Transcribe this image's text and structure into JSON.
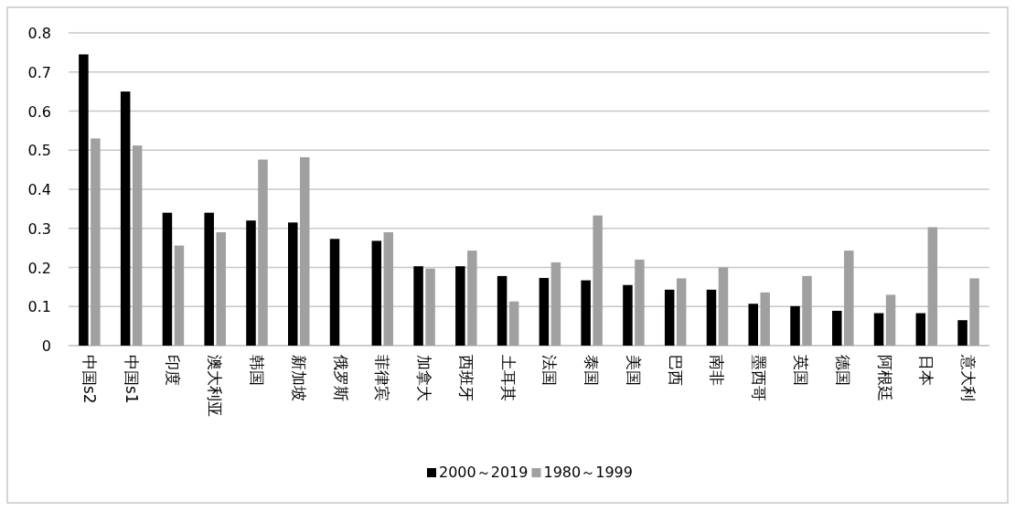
{
  "chart_data": {
    "type": "bar",
    "categories": [
      "中国s2",
      "中国s1",
      "印度",
      "澳大利亚",
      "韩国",
      "新加坡",
      "俄罗斯",
      "菲律宾",
      "加拿大",
      "西班牙",
      "土耳其",
      "法国",
      "泰国",
      "美国",
      "巴西",
      "南非",
      "墨西哥",
      "英国",
      "德国",
      "阿根廷",
      "日本",
      "意大利"
    ],
    "series": [
      {
        "name": "2000～2019",
        "color": "#000000",
        "values": [
          0.745,
          0.65,
          0.34,
          0.34,
          0.32,
          0.315,
          0.273,
          0.268,
          0.203,
          0.203,
          0.178,
          0.173,
          0.167,
          0.155,
          0.143,
          0.143,
          0.107,
          0.101,
          0.089,
          0.083,
          0.083,
          0.065
        ]
      },
      {
        "name": "1980～1999",
        "color": "#a0a0a0",
        "values": [
          0.53,
          0.512,
          0.256,
          0.29,
          0.476,
          0.482,
          null,
          0.29,
          0.197,
          0.243,
          0.113,
          0.213,
          0.333,
          0.22,
          0.172,
          0.2,
          0.136,
          0.178,
          0.243,
          0.13,
          0.303,
          0.172
        ]
      }
    ],
    "ylim": [
      0,
      0.8
    ],
    "yticks": [
      0,
      0.1,
      0.2,
      0.3,
      0.4,
      0.5,
      0.6,
      0.7,
      0.8
    ],
    "grid": "y",
    "legend": "bottom"
  }
}
